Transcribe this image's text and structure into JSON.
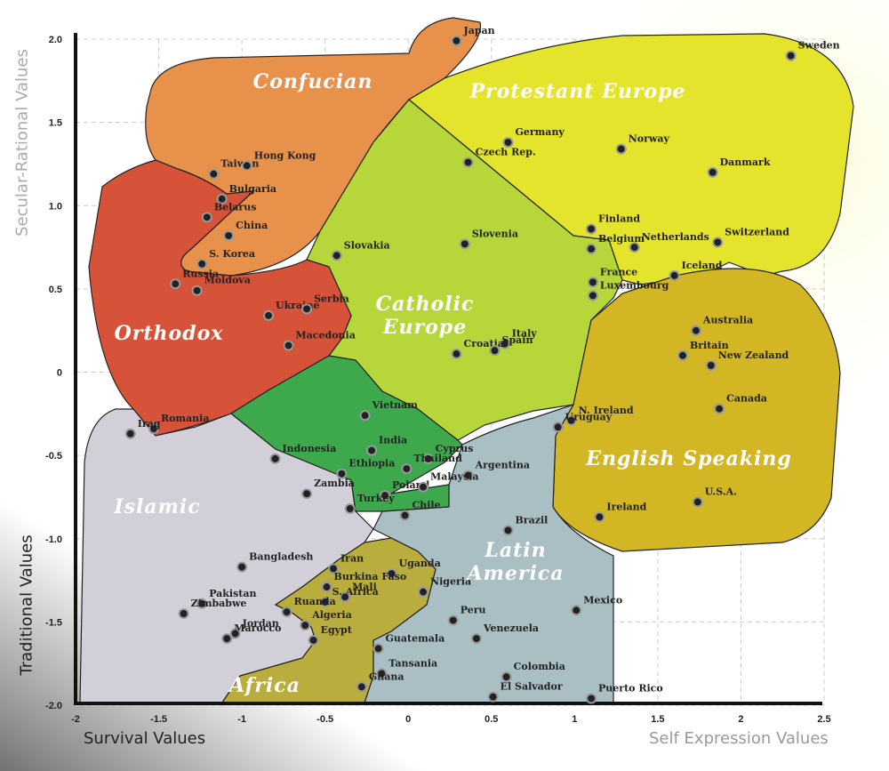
{
  "chart_data": {
    "type": "scatter",
    "x_labels": [
      "Survival Values",
      "Self Expression Values"
    ],
    "y_labels": [
      "Secular-Rational Values",
      "Traditional Values"
    ],
    "xlim": [
      -2,
      2.5
    ],
    "ylim": [
      -2,
      2
    ],
    "xticks": [
      -2,
      -1.5,
      -1,
      -0.5,
      0,
      0.5,
      1,
      1.5,
      2,
      2.5
    ],
    "yticks": [
      {
        "value": 2,
        "label": "2.0"
      },
      1.5,
      {
        "value": 1,
        "label": "1.0"
      },
      0.5,
      0,
      -0.5,
      {
        "value": -1,
        "label": "-1.0"
      },
      -1.5,
      {
        "value": -2,
        "label": "-2.0"
      }
    ],
    "grid": true,
    "regions": [
      {
        "name": "Confucian",
        "color": "#e8914a"
      },
      {
        "name": "Protestant Europe",
        "color": "#e4e42c"
      },
      {
        "name": "Orthodox",
        "color": "#d6533a"
      },
      {
        "name": "Catholic Europe",
        "color": "#b6d63a"
      },
      {
        "name": "English Speaking",
        "color": "#d2b624"
      },
      {
        "name": "Islamic",
        "color": "#d2cfd8"
      },
      {
        "name": "Latin America",
        "color": "#a9bfc3"
      },
      {
        "name": "Africa",
        "color": "#b9ad3e"
      },
      {
        "color": "#3ea84c"
      }
    ],
    "points": {
      "labels": [
        "Japan",
        "Sweden",
        "Germany",
        "Norway",
        "Czech Rep.",
        "Danmark",
        "Taiwan",
        "Hong Kong",
        "Bulgaria",
        "Belarus",
        "China",
        "S. Korea",
        "Slovakia",
        "Slovenia",
        "Finland",
        "Belgium",
        "Netherlands",
        "Switzerland",
        "Iceland",
        "Russia",
        "Moldova",
        "France",
        "Luxembourg",
        "Ukraine",
        "Serbia",
        "Macedonia",
        "Australia",
        "Italy",
        "Britain",
        "New Zealand",
        "Croatia",
        "Spain",
        "Canada",
        "Vietnam",
        "N. Ireland",
        "Uruguay",
        "Romania",
        "Iraq",
        "India",
        "Cyprus",
        "Indonesia",
        "Thailand",
        "Ethiopia",
        "Argentina",
        "Poland",
        "Malaysia",
        "U.S.A.",
        "Zambia",
        "Turkey",
        "Chile",
        "Ireland",
        "Brazil",
        "Bangladesh",
        "Iran",
        "Uganda",
        "Nigeria",
        "Pakistan",
        "Burkina Faso",
        "Mali",
        "S. Africa",
        "Ruanda",
        "Zimbabwe",
        "Mexico",
        "Peru",
        "Jordan",
        "Algeria",
        "Venezuela",
        "Marocco",
        "Egypt",
        "Guatemala",
        "Colombia",
        "Tansania",
        "Ghana",
        "El Salvador",
        "Puerto Rico"
      ],
      "x": [
        0.29,
        2.3,
        0.6,
        1.28,
        0.36,
        1.83,
        -1.17,
        -0.97,
        -1.12,
        -1.21,
        -1.08,
        -1.24,
        -0.43,
        0.34,
        1.1,
        1.1,
        1.36,
        1.86,
        1.6,
        -1.4,
        -1.27,
        1.11,
        1.11,
        -0.84,
        -0.61,
        -0.72,
        1.73,
        0.58,
        1.65,
        1.82,
        0.29,
        0.52,
        1.87,
        -0.26,
        0.98,
        0.9,
        -1.53,
        -1.67,
        -0.22,
        0.12,
        -0.8,
        -0.01,
        -0.4,
        0.36,
        -0.14,
        0.09,
        1.74,
        -0.61,
        -0.35,
        -0.02,
        1.15,
        0.6,
        -1.0,
        -0.45,
        -0.1,
        0.09,
        -1.24,
        -0.49,
        -0.38,
        -0.5,
        -0.73,
        -1.35,
        1.01,
        0.27,
        -1.04,
        -0.62,
        0.41,
        -1.09,
        -0.57,
        -0.18,
        0.59,
        -0.16,
        -0.28,
        0.51,
        1.1
      ],
      "y": [
        1.99,
        1.9,
        1.38,
        1.34,
        1.26,
        1.2,
        1.19,
        1.24,
        1.04,
        0.93,
        0.82,
        0.65,
        0.7,
        0.77,
        0.86,
        0.74,
        0.75,
        0.78,
        0.58,
        0.53,
        0.49,
        0.54,
        0.46,
        0.34,
        0.38,
        0.16,
        0.25,
        0.17,
        0.1,
        0.04,
        0.11,
        0.13,
        -0.22,
        -0.26,
        -0.29,
        -0.33,
        -0.34,
        -0.37,
        -0.47,
        -0.52,
        -0.52,
        -0.58,
        -0.61,
        -0.62,
        -0.74,
        -0.69,
        -0.78,
        -0.73,
        -0.82,
        -0.86,
        -0.87,
        -0.95,
        -1.17,
        -1.18,
        -1.21,
        -1.32,
        -1.39,
        -1.29,
        -1.35,
        -1.38,
        -1.44,
        -1.45,
        -1.43,
        -1.49,
        -1.57,
        -1.52,
        -1.6,
        -1.6,
        -1.61,
        -1.66,
        -1.83,
        -1.81,
        -1.89,
        -1.95,
        -1.96
      ]
    }
  }
}
